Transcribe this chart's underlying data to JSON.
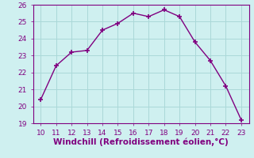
{
  "x": [
    10,
    11,
    12,
    13,
    14,
    15,
    16,
    17,
    18,
    19,
    20,
    21,
    22,
    23
  ],
  "y": [
    20.4,
    22.4,
    23.2,
    23.3,
    24.5,
    24.9,
    25.5,
    25.3,
    25.7,
    25.3,
    23.8,
    22.7,
    21.2,
    19.2
  ],
  "line_color": "#800080",
  "marker": "+",
  "marker_size": 4,
  "marker_linewidth": 1.2,
  "background_color": "#cff0f0",
  "grid_color": "#aad8d8",
  "xlabel": "Windchill (Refroidissement éolien,°C)",
  "xlabel_color": "#800080",
  "xlim": [
    9.5,
    23.5
  ],
  "ylim": [
    19,
    26
  ],
  "xticks": [
    10,
    11,
    12,
    13,
    14,
    15,
    16,
    17,
    18,
    19,
    20,
    21,
    22,
    23
  ],
  "yticks": [
    19,
    20,
    21,
    22,
    23,
    24,
    25,
    26
  ],
  "tick_color": "#800080",
  "tick_fontsize": 6.5,
  "xlabel_fontsize": 7.5,
  "line_width": 1.0,
  "spine_color": "#800080"
}
